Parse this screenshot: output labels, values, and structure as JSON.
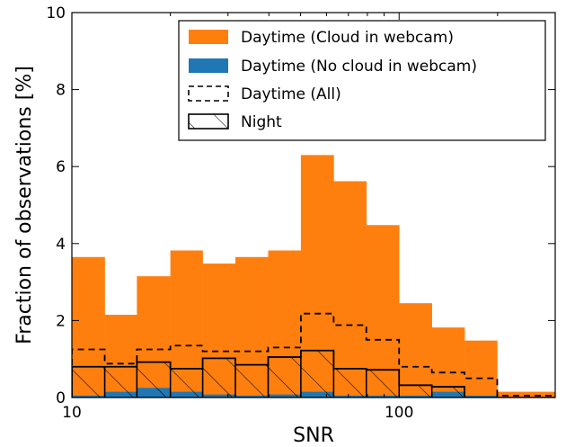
{
  "chart_data": {
    "type": "bar",
    "title": "",
    "xlabel": "SNR",
    "ylabel": "Fraction of observations [%]",
    "xscale": "log",
    "xlim": [
      10,
      300
    ],
    "ylim": [
      0,
      10
    ],
    "bin_edges": [
      10,
      12.6,
      15.8,
      20,
      25.1,
      31.6,
      39.8,
      50.1,
      63.1,
      79.4,
      100,
      125.9,
      158.5,
      199.5,
      251.2,
      300
    ],
    "x_ticks": [
      10,
      100
    ],
    "x_tick_labels": [
      "10",
      "100"
    ],
    "y_ticks": [
      0,
      2,
      4,
      6,
      8,
      10
    ],
    "y_tick_labels": [
      "0",
      "2",
      "4",
      "6",
      "8",
      "10"
    ],
    "legend_position": "top-right",
    "series": [
      {
        "name": "Daytime (Cloud in webcam)",
        "style": "filled",
        "color": "#ff7f0e",
        "values": [
          3.65,
          2.15,
          3.15,
          3.82,
          3.48,
          3.65,
          3.82,
          6.3,
          5.62,
          4.48,
          2.45,
          1.82,
          1.48,
          0.15,
          0.15
        ]
      },
      {
        "name": "Daytime (No cloud in webcam)",
        "style": "filled",
        "color": "#1f77b4",
        "values": [
          0.05,
          0.15,
          0.25,
          0.15,
          0.08,
          0.05,
          0.08,
          0.15,
          0.05,
          0.05,
          0.05,
          0.15,
          0.05,
          0.0,
          0.0
        ]
      },
      {
        "name": "Daytime (All)",
        "style": "dashed",
        "color": "#000000",
        "values": [
          1.25,
          0.88,
          1.25,
          1.35,
          1.2,
          1.2,
          1.3,
          2.18,
          1.88,
          1.5,
          0.8,
          0.65,
          0.5,
          0.05,
          0.05
        ]
      },
      {
        "name": "Night",
        "style": "hatched",
        "color": "#000000",
        "values": [
          0.8,
          0.8,
          0.92,
          0.75,
          1.02,
          0.85,
          1.05,
          1.22,
          0.75,
          0.72,
          0.32,
          0.28,
          0.0,
          0.0,
          0.0
        ]
      }
    ]
  }
}
